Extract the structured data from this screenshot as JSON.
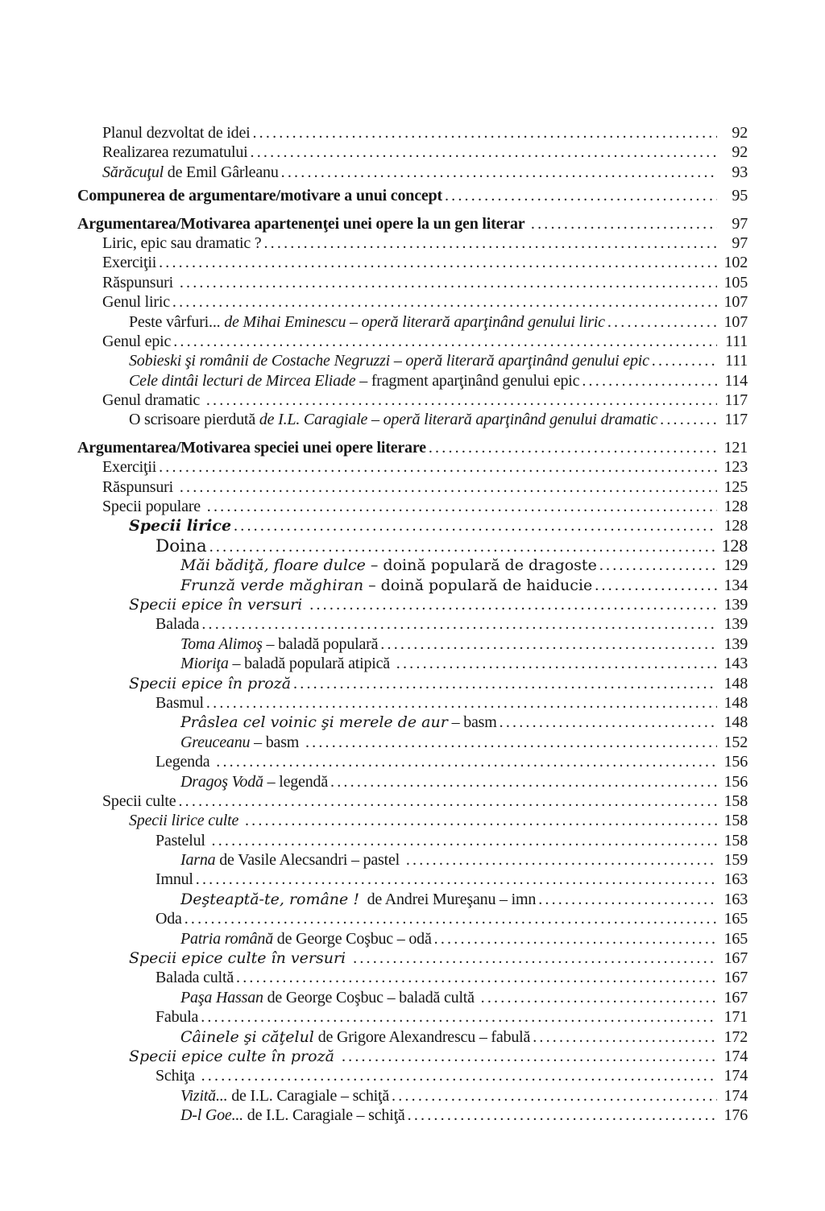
{
  "colors": {
    "background": "#ffffff",
    "text": "#161616"
  },
  "leader_char": ".",
  "toc": {
    "entries": [
      {
        "level": 1,
        "page": "92",
        "segments": [
          {
            "t": "Planul dezvoltat de idei",
            "s": "r"
          }
        ]
      },
      {
        "level": 1,
        "page": "92",
        "segments": [
          {
            "t": "Realizarea rezumatului",
            "s": "r"
          }
        ]
      },
      {
        "level": 1,
        "page": "93",
        "segments": [
          {
            "t": "Sărăcuţul",
            "s": "i"
          },
          {
            "t": " de Emil Gârleanu",
            "s": "r"
          }
        ]
      },
      {
        "level": 0,
        "page": "95",
        "gap": "sm",
        "segments": [
          {
            "t": "Compunerea de argumentare/motivare a unui concept",
            "s": "b"
          }
        ]
      },
      {
        "level": 0,
        "page": "97",
        "gap": "lg",
        "segments": [
          {
            "t": "Argumentarea/Motivarea apartenenţei unei opere la un gen literar ",
            "s": "b"
          }
        ]
      },
      {
        "level": 1,
        "page": "97",
        "segments": [
          {
            "t": "Liric, epic sau dramatic ?",
            "s": "r"
          }
        ]
      },
      {
        "level": 1,
        "page": "102",
        "segments": [
          {
            "t": "Exerciţii",
            "s": "r"
          }
        ]
      },
      {
        "level": 1,
        "page": "105",
        "segments": [
          {
            "t": "Răspunsuri ",
            "s": "r"
          }
        ]
      },
      {
        "level": 1,
        "page": "107",
        "segments": [
          {
            "t": "Genul liric",
            "s": "r"
          }
        ]
      },
      {
        "level": 2,
        "page": "107",
        "segments": [
          {
            "t": "Peste vârfuri... ",
            "s": "r"
          },
          {
            "t": "de Mihai Eminescu – operă literară aparţinând genului liric",
            "s": "i"
          }
        ]
      },
      {
        "level": 1,
        "page": "111",
        "segments": [
          {
            "t": "Genul epic",
            "s": "r"
          }
        ]
      },
      {
        "level": 2,
        "page": "111",
        "segments": [
          {
            "t": "Sobieski şi românii de Costache Negruzzi – operă literară aparţinând genului epic",
            "s": "i"
          }
        ]
      },
      {
        "level": 2,
        "page": "114",
        "segments": [
          {
            "t": "Cele dintâi lecturi de Mircea Eliade",
            "s": "i"
          },
          {
            "t": " – fragment aparţinând genului epic",
            "s": "r"
          }
        ]
      },
      {
        "level": 1,
        "page": "117",
        "segments": [
          {
            "t": "Genul dramatic ",
            "s": "r"
          }
        ]
      },
      {
        "level": 2,
        "page": "117",
        "segments": [
          {
            "t": "O scrisoare pierdută ",
            "s": "r"
          },
          {
            "t": "de I.L. Caragiale – operă literară aparţinând genului dramatic",
            "s": "i"
          }
        ]
      },
      {
        "level": 0,
        "page": "121",
        "gap": "lg",
        "segments": [
          {
            "t": "Argumentarea/Motivarea speciei unei opere literare",
            "s": "b"
          }
        ]
      },
      {
        "level": 1,
        "page": "123",
        "segments": [
          {
            "t": "Exerciţii",
            "s": "r"
          }
        ]
      },
      {
        "level": 1,
        "page": "125",
        "segments": [
          {
            "t": "Răspunsuri ",
            "s": "r"
          }
        ]
      },
      {
        "level": 1,
        "page": "128",
        "segments": [
          {
            "t": "Specii populare ",
            "s": "r"
          }
        ]
      },
      {
        "level": 2,
        "page": "128",
        "wide": true,
        "segments": [
          {
            "t": "Specii lirice",
            "s": "bi"
          }
        ]
      },
      {
        "level": 3,
        "page": "128",
        "wide": true,
        "big": true,
        "segments": [
          {
            "t": "Doina",
            "s": "r"
          }
        ]
      },
      {
        "level": 4,
        "page": "129",
        "wide": true,
        "segments": [
          {
            "t": "Măi bădiţă, floare dulce",
            "s": "i"
          },
          {
            "t": " – doină populară de dragoste",
            "s": "r"
          }
        ]
      },
      {
        "level": 4,
        "page": "134",
        "wide": true,
        "segments": [
          {
            "t": "Frunză verde măghiran",
            "s": "i"
          },
          {
            "t": " – doină populară de haiducie",
            "s": "r"
          }
        ]
      },
      {
        "level": 2,
        "page": "139",
        "wide": true,
        "segments": [
          {
            "t": "Specii epice în versuri ",
            "s": "i"
          }
        ]
      },
      {
        "level": 3,
        "page": "139",
        "segments": [
          {
            "t": "Balada",
            "s": "r"
          }
        ]
      },
      {
        "level": 4,
        "page": "139",
        "segments": [
          {
            "t": "Toma Alimoş",
            "s": "i"
          },
          {
            "t": " – baladă populară",
            "s": "r"
          }
        ]
      },
      {
        "level": 4,
        "page": "143",
        "segments": [
          {
            "t": "Mioriţa",
            "s": "i"
          },
          {
            "t": " – baladă populară atipică ",
            "s": "r"
          }
        ]
      },
      {
        "level": 2,
        "page": "148",
        "wide": true,
        "segments": [
          {
            "t": "Specii epice în proză",
            "s": "i"
          }
        ]
      },
      {
        "level": 3,
        "page": "148",
        "segments": [
          {
            "t": "Basmul",
            "s": "r"
          }
        ]
      },
      {
        "level": 4,
        "page": "148",
        "segments": [
          {
            "t": "Prâslea cel voinic şi merele de aur",
            "s": "i",
            "w": true
          },
          {
            "t": " – basm",
            "s": "r"
          }
        ]
      },
      {
        "level": 4,
        "page": "152",
        "segments": [
          {
            "t": "Greuceanu",
            "s": "i"
          },
          {
            "t": " – basm ",
            "s": "r"
          }
        ]
      },
      {
        "level": 3,
        "page": "156",
        "segments": [
          {
            "t": "Legenda ",
            "s": "r"
          }
        ]
      },
      {
        "level": 4,
        "page": "156",
        "segments": [
          {
            "t": "Dragoş Vodă",
            "s": "i"
          },
          {
            "t": " – legendă",
            "s": "r"
          }
        ]
      },
      {
        "level": 1,
        "page": "158",
        "segments": [
          {
            "t": "Specii culte",
            "s": "r"
          }
        ]
      },
      {
        "level": 2,
        "page": "158",
        "segments": [
          {
            "t": "Specii lirice culte ",
            "s": "i"
          }
        ]
      },
      {
        "level": 3,
        "page": "158",
        "segments": [
          {
            "t": "Pastelul ",
            "s": "r"
          }
        ]
      },
      {
        "level": 4,
        "page": "159",
        "segments": [
          {
            "t": "Iarna",
            "s": "i"
          },
          {
            "t": " de Vasile Alecsandri – pastel ",
            "s": "r"
          }
        ]
      },
      {
        "level": 3,
        "page": "163",
        "segments": [
          {
            "t": "Imnul",
            "s": "r"
          }
        ]
      },
      {
        "level": 4,
        "page": "163",
        "segments": [
          {
            "t": "Deşteaptă-te, române !",
            "s": "i",
            "w": true
          },
          {
            "t": "  de Andrei Mureşanu – imn",
            "s": "r"
          }
        ]
      },
      {
        "level": 3,
        "page": "165",
        "segments": [
          {
            "t": "Oda",
            "s": "r"
          }
        ]
      },
      {
        "level": 4,
        "page": "165",
        "segments": [
          {
            "t": "Patria română",
            "s": "i"
          },
          {
            "t": " de George Coşbuc – odă",
            "s": "r"
          }
        ]
      },
      {
        "level": 2,
        "page": "167",
        "wide": true,
        "segments": [
          {
            "t": "Specii epice culte în versuri ",
            "s": "i"
          }
        ]
      },
      {
        "level": 3,
        "page": "167",
        "segments": [
          {
            "t": "Balada cultă",
            "s": "r"
          }
        ]
      },
      {
        "level": 4,
        "page": "167",
        "segments": [
          {
            "t": "Paşa Hassan",
            "s": "i"
          },
          {
            "t": " de George Coşbuc – baladă cultă ",
            "s": "r"
          }
        ]
      },
      {
        "level": 3,
        "page": "171",
        "segments": [
          {
            "t": "Fabula",
            "s": "r"
          }
        ]
      },
      {
        "level": 4,
        "page": "172",
        "segments": [
          {
            "t": "Câinele şi căţelul",
            "s": "i",
            "w": true
          },
          {
            "t": " de Grigore Alexandrescu – fabulă",
            "s": "r"
          }
        ]
      },
      {
        "level": 2,
        "page": "174",
        "wide": true,
        "segments": [
          {
            "t": "Specii epice culte în proză ",
            "s": "i"
          }
        ]
      },
      {
        "level": 3,
        "page": "174",
        "segments": [
          {
            "t": "Schiţa ",
            "s": "r"
          }
        ]
      },
      {
        "level": 4,
        "page": "174",
        "segments": [
          {
            "t": "Vizită...",
            "s": "i"
          },
          {
            "t": " de I.L. Caragiale – schiţă",
            "s": "r"
          }
        ]
      },
      {
        "level": 4,
        "page": "176",
        "segments": [
          {
            "t": "D-l Goe...",
            "s": "i"
          },
          {
            "t": " de I.L. Caragiale – schiţă",
            "s": "r"
          }
        ]
      }
    ]
  }
}
